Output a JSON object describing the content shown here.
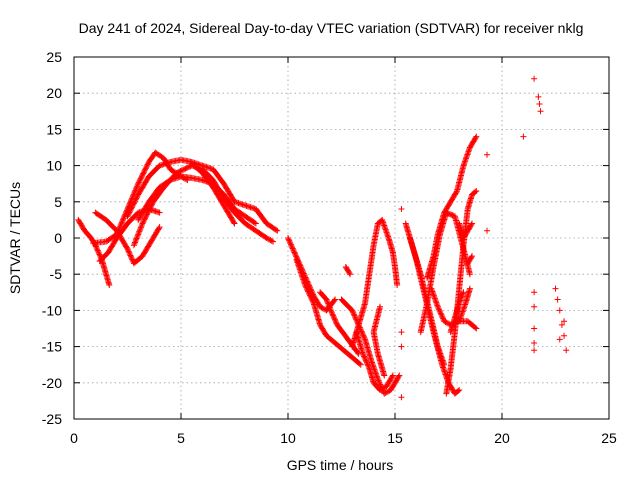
{
  "chart_data": {
    "type": "scatter",
    "title": "Day 241 of 2024, Sidereal Day-to-day VTEC variation (SDTVAR) for receiver nklg",
    "xlabel": "GPS time / hours",
    "ylabel": "SDTVAR / TECUs",
    "xlim": [
      0,
      25
    ],
    "ylim": [
      -25,
      25
    ],
    "xticks": [
      0,
      5,
      10,
      15,
      20,
      25
    ],
    "yticks": [
      -25,
      -20,
      -15,
      -10,
      -5,
      0,
      5,
      10,
      15,
      20,
      25
    ],
    "grid": true,
    "marker": "+",
    "color": "#ff0000",
    "tracks": [
      [
        [
          0.2,
          2.5
        ],
        [
          0.5,
          1.0
        ],
        [
          0.8,
          0.0
        ],
        [
          1.0,
          -1.0
        ],
        [
          1.3,
          -3.0
        ],
        [
          1.5,
          -5.0
        ],
        [
          1.65,
          -6.5
        ]
      ],
      [
        [
          1.2,
          -3.2
        ],
        [
          1.6,
          -2.0
        ],
        [
          2.0,
          0.0
        ],
        [
          2.5,
          2.0
        ],
        [
          3.0,
          3.5
        ],
        [
          3.5,
          4.0
        ],
        [
          4.0,
          3.5
        ]
      ],
      [
        [
          1.0,
          3.5
        ],
        [
          1.5,
          2.5
        ],
        [
          2.0,
          1.0
        ],
        [
          2.5,
          -1.5
        ],
        [
          2.8,
          -3.5
        ],
        [
          3.2,
          -2.5
        ],
        [
          3.5,
          -1.0
        ],
        [
          4.0,
          1.5
        ]
      ],
      [
        [
          0.9,
          -0.7
        ],
        [
          1.5,
          -0.5
        ],
        [
          2.0,
          0.5
        ],
        [
          2.5,
          4.0
        ],
        [
          3.0,
          7.5
        ],
        [
          3.5,
          10.5
        ],
        [
          3.8,
          11.8
        ],
        [
          4.2,
          11.0
        ],
        [
          4.5,
          9.5
        ],
        [
          5.0,
          8.5
        ],
        [
          5.3,
          8.0
        ]
      ],
      [
        [
          2.5,
          3.0
        ],
        [
          3.0,
          6.0
        ],
        [
          3.5,
          8.5
        ],
        [
          4.0,
          10.0
        ],
        [
          4.5,
          10.5
        ],
        [
          5.0,
          10.8
        ],
        [
          5.5,
          10.5
        ],
        [
          6.0,
          10.0
        ],
        [
          6.5,
          9.5
        ],
        [
          7.0,
          7.5
        ],
        [
          7.5,
          5.0
        ],
        [
          8.0,
          4.5
        ],
        [
          8.5,
          4.0
        ],
        [
          9.0,
          2.0
        ],
        [
          9.5,
          1.0
        ]
      ],
      [
        [
          3.0,
          2.5
        ],
        [
          3.5,
          5.0
        ],
        [
          4.0,
          7.0
        ],
        [
          4.5,
          8.0
        ],
        [
          5.0,
          8.5
        ],
        [
          5.5,
          8.3
        ],
        [
          6.0,
          8.0
        ],
        [
          6.5,
          7.5
        ],
        [
          7.0,
          6.0
        ],
        [
          7.5,
          4.0
        ],
        [
          8.0,
          3.0
        ],
        [
          8.5,
          2.0
        ]
      ],
      [
        [
          2.8,
          -1.0
        ],
        [
          3.2,
          2.0
        ],
        [
          3.7,
          5.0
        ],
        [
          4.2,
          7.0
        ],
        [
          4.8,
          9.0
        ],
        [
          5.5,
          10.0
        ],
        [
          6.0,
          9.5
        ],
        [
          6.5,
          8.0
        ],
        [
          7.0,
          5.5
        ],
        [
          7.5,
          3.5
        ],
        [
          8.0,
          2.0
        ],
        [
          8.5,
          1.0
        ],
        [
          9.0,
          0.0
        ],
        [
          9.3,
          -0.5
        ]
      ],
      [
        [
          5.5,
          10.3
        ],
        [
          6.0,
          9.0
        ],
        [
          6.5,
          7.0
        ],
        [
          7.0,
          4.5
        ],
        [
          7.3,
          3.0
        ],
        [
          7.5,
          2.0
        ]
      ],
      [
        [
          10.0,
          0.0
        ],
        [
          10.3,
          -2.0
        ],
        [
          10.6,
          -4.0
        ],
        [
          10.9,
          -6.0
        ],
        [
          11.2,
          -8.0
        ],
        [
          11.5,
          -9.5
        ],
        [
          11.8,
          -10.0
        ],
        [
          12.2,
          -8.5
        ]
      ],
      [
        [
          10.4,
          -3.0
        ],
        [
          10.8,
          -6.5
        ],
        [
          11.2,
          -9.0
        ],
        [
          11.5,
          -12.0
        ],
        [
          11.8,
          -13.5
        ],
        [
          12.2,
          -14.5
        ],
        [
          12.6,
          -15.5
        ],
        [
          13.0,
          -16.5
        ],
        [
          13.4,
          -17.5
        ]
      ],
      [
        [
          11.5,
          -7.5
        ],
        [
          11.8,
          -8.5
        ],
        [
          12.0,
          -10.0
        ],
        [
          12.3,
          -12.0
        ],
        [
          12.8,
          -14.0
        ],
        [
          13.3,
          -16.0
        ]
      ],
      [
        [
          12.7,
          -4.0
        ],
        [
          12.9,
          -5.0
        ]
      ],
      [
        [
          12.5,
          -8.5
        ],
        [
          13.0,
          -10.0
        ],
        [
          13.3,
          -12.0
        ],
        [
          13.6,
          -14.0
        ],
        [
          13.9,
          -17.0
        ],
        [
          14.2,
          -19.5
        ],
        [
          14.5,
          -21.5
        ],
        [
          14.8,
          -21.0
        ],
        [
          15.0,
          -20.0
        ],
        [
          15.2,
          -19.0
        ]
      ],
      [
        [
          13.0,
          -15.0
        ],
        [
          13.3,
          -12.0
        ],
        [
          13.6,
          -9.0
        ],
        [
          13.8,
          -5.0
        ],
        [
          14.0,
          -1.0
        ],
        [
          14.2,
          2.0
        ],
        [
          14.4,
          2.5
        ],
        [
          14.7,
          0.0
        ],
        [
          14.9,
          -2.0
        ],
        [
          15.0,
          -4.0
        ],
        [
          15.1,
          -6.5
        ]
      ],
      [
        [
          13.2,
          -13.0
        ],
        [
          13.5,
          -16.0
        ],
        [
          13.8,
          -18.0
        ],
        [
          14.0,
          -20.0
        ],
        [
          14.3,
          -21.0
        ],
        [
          14.6,
          -20.5
        ],
        [
          14.9,
          -19.0
        ]
      ],
      [
        [
          14.3,
          -9.5
        ],
        [
          14.0,
          -13.0
        ],
        [
          14.2,
          -16.0
        ],
        [
          14.5,
          -19.0
        ]
      ],
      [
        [
          15.5,
          2.0
        ],
        [
          15.8,
          -1.0
        ],
        [
          16.2,
          -5.0
        ],
        [
          16.6,
          -10.0
        ],
        [
          17.0,
          -15.0
        ],
        [
          17.3,
          -17.5
        ]
      ],
      [
        [
          15.7,
          0.0
        ],
        [
          16.0,
          -3.0
        ],
        [
          16.4,
          -8.0
        ],
        [
          16.8,
          -13.0
        ],
        [
          17.2,
          -17.5
        ],
        [
          17.5,
          -20.0
        ],
        [
          17.8,
          -21.5
        ],
        [
          18.0,
          -21.0
        ]
      ],
      [
        [
          16.2,
          -13.0
        ],
        [
          16.5,
          -9.0
        ],
        [
          16.8,
          -4.0
        ],
        [
          17.1,
          0.5
        ],
        [
          17.4,
          3.5
        ],
        [
          17.8,
          3.0
        ],
        [
          18.2,
          -1.5
        ],
        [
          18.5,
          -5.0
        ]
      ],
      [
        [
          17.4,
          -21.5
        ],
        [
          17.6,
          -18.0
        ],
        [
          17.8,
          -13.0
        ],
        [
          18.0,
          -7.0
        ],
        [
          18.2,
          -1.0
        ],
        [
          18.4,
          4.0
        ],
        [
          18.6,
          6.0
        ],
        [
          18.8,
          6.5
        ]
      ],
      [
        [
          16.5,
          -5.5
        ],
        [
          16.8,
          -2.5
        ],
        [
          17.0,
          0.5
        ],
        [
          17.3,
          3.5
        ],
        [
          17.6,
          5.0
        ],
        [
          17.9,
          6.5
        ],
        [
          18.2,
          10.0
        ],
        [
          18.5,
          12.5
        ],
        [
          18.8,
          14.0
        ]
      ],
      [
        [
          16.7,
          -7.0
        ],
        [
          17.0,
          -9.5
        ],
        [
          17.3,
          -11.5
        ],
        [
          17.6,
          -12.0
        ],
        [
          18.0,
          -11.5
        ],
        [
          18.4,
          -11.5
        ],
        [
          18.8,
          -12.5
        ]
      ],
      [
        [
          18.0,
          -11.5
        ],
        [
          18.3,
          -9.0
        ],
        [
          18.5,
          -7.0
        ]
      ],
      [
        [
          17.6,
          -13.0
        ],
        [
          17.8,
          -11.0
        ],
        [
          18.0,
          -9.0
        ],
        [
          18.2,
          -7.5
        ]
      ],
      [
        [
          18.0,
          2.0
        ],
        [
          18.2,
          0.0
        ],
        [
          18.4,
          1.0
        ],
        [
          18.6,
          2.0
        ]
      ],
      [
        [
          18.4,
          -3.5
        ],
        [
          18.6,
          -2.5
        ]
      ]
    ],
    "points": [
      [
        15.3,
        4.0
      ],
      [
        15.3,
        -13.0
      ],
      [
        15.3,
        -15.0
      ],
      [
        15.3,
        -22.0
      ],
      [
        19.3,
        11.5
      ],
      [
        19.3,
        1.0
      ],
      [
        21.0,
        14.0
      ],
      [
        21.5,
        22.0
      ],
      [
        21.7,
        19.5
      ],
      [
        21.75,
        18.5
      ],
      [
        21.8,
        17.5
      ],
      [
        21.5,
        -7.5
      ],
      [
        21.5,
        -9.5
      ],
      [
        21.5,
        -12.5
      ],
      [
        21.5,
        -14.5
      ],
      [
        21.5,
        -15.5
      ],
      [
        22.5,
        -7.0
      ],
      [
        22.6,
        -8.5
      ],
      [
        22.7,
        -10.0
      ],
      [
        22.8,
        -12.0
      ],
      [
        22.9,
        -13.5
      ],
      [
        23.0,
        -15.5
      ],
      [
        22.7,
        -14.0
      ],
      [
        22.9,
        -11.5
      ]
    ]
  }
}
